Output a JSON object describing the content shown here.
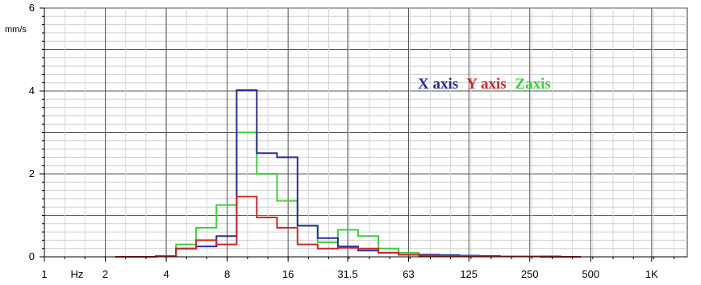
{
  "chart_data": {
    "type": "line",
    "title": "",
    "xlabel": "Hz",
    "ylabel": "mm/s",
    "x_scale": "log2",
    "xlim": [
      1,
      1500
    ],
    "ylim": [
      0,
      6
    ],
    "x_ticks": [
      {
        "value": 1,
        "label": "1"
      },
      {
        "value": 1.45,
        "label": "Hz"
      },
      {
        "value": 2,
        "label": "2"
      },
      {
        "value": 4,
        "label": "4"
      },
      {
        "value": 8,
        "label": "8"
      },
      {
        "value": 16,
        "label": "16"
      },
      {
        "value": 31.5,
        "label": "31.5"
      },
      {
        "value": 63,
        "label": "63"
      },
      {
        "value": 125,
        "label": "125"
      },
      {
        "value": 250,
        "label": "250"
      },
      {
        "value": 500,
        "label": "500"
      },
      {
        "value": 1000,
        "label": "1K"
      }
    ],
    "y_ticks": [
      0,
      2,
      4,
      6
    ],
    "grid": true,
    "legend_position": "top-right",
    "legend_text": [
      "X axis",
      "Y axis",
      "Zaxis"
    ],
    "bin_edges": [
      2.24,
      2.82,
      3.55,
      4.47,
      5.62,
      7.08,
      8.91,
      11.2,
      14.1,
      17.8,
      22.4,
      28.2,
      35.5,
      44.7,
      56.2,
      70.8,
      89.1,
      112,
      141,
      178,
      224,
      282,
      355,
      447
    ],
    "series": [
      {
        "name": "X axis",
        "color": "#2b2b9b",
        "values": [
          0.0,
          0.0,
          0.02,
          0.2,
          0.25,
          0.5,
          4.02,
          2.5,
          2.4,
          0.75,
          0.45,
          0.25,
          0.15,
          0.1,
          0.05,
          0.05,
          0.04,
          0.03,
          0.02,
          0.01,
          0.01,
          0.01,
          0.0
        ]
      },
      {
        "name": "Y axis",
        "color": "#c8282a",
        "values": [
          0.0,
          0.0,
          0.02,
          0.2,
          0.4,
          0.3,
          1.45,
          0.95,
          0.7,
          0.3,
          0.2,
          0.22,
          0.2,
          0.1,
          0.05,
          0.03,
          0.02,
          0.02,
          0.01,
          0.01,
          0.01,
          0.0,
          0.0
        ]
      },
      {
        "name": "Zaxis",
        "color": "#3fcf3f",
        "values": [
          0.0,
          0.0,
          0.02,
          0.3,
          0.7,
          1.25,
          3.0,
          2.0,
          1.35,
          0.75,
          0.35,
          0.65,
          0.5,
          0.2,
          0.1,
          0.05,
          0.04,
          0.03,
          0.02,
          0.01,
          0.01,
          0.01,
          0.0
        ]
      }
    ]
  }
}
